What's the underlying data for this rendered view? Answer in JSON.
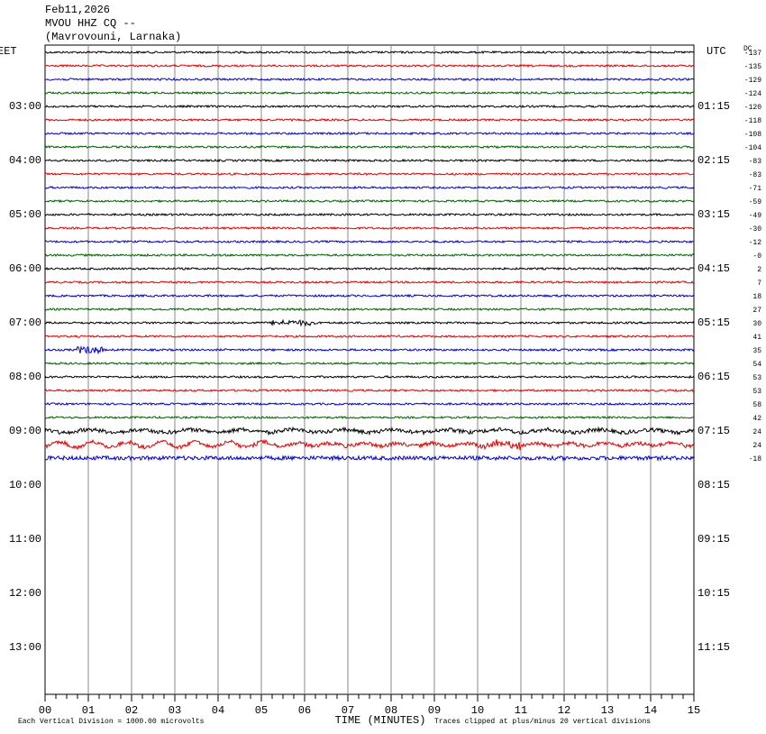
{
  "header": {
    "date": "Feb11,2026",
    "station": "MVOU HHZ CQ --",
    "location": "(Mavrovouni, Larnaka)"
  },
  "left_axis": {
    "title": "EET",
    "labels": [
      "03:00",
      "04:00",
      "05:00",
      "06:00",
      "07:00",
      "08:00",
      "09:00",
      "10:00",
      "11:00",
      "12:00",
      "13:00"
    ]
  },
  "right_axis": {
    "title": "UTC",
    "labels": [
      "01:15",
      "02:15",
      "03:15",
      "04:15",
      "05:15",
      "06:15",
      "07:15",
      "08:15",
      "09:15",
      "10:15",
      "11:15"
    ]
  },
  "dc_offsets": {
    "title": "DC",
    "values": [
      "-137",
      "-135",
      "-129",
      "-124",
      "-120",
      "-118",
      "-108",
      "-104",
      "-83",
      "-83",
      "-71",
      "-59",
      "-49",
      "-30",
      "-12",
      "-0",
      "2",
      "7",
      "18",
      "27",
      "30",
      "41",
      "35",
      "54",
      "53",
      "53",
      "58",
      "42",
      "24",
      "24",
      "-18"
    ]
  },
  "trace_colors": [
    "#000000",
    "#e00000",
    "#0000d0",
    "#006000"
  ],
  "x_axis": {
    "title": "TIME (MINUTES)",
    "labels": [
      "00",
      "01",
      "02",
      "03",
      "04",
      "05",
      "06",
      "07",
      "08",
      "09",
      "10",
      "11",
      "12",
      "13",
      "14",
      "15"
    ]
  },
  "footer": {
    "scale": "Each Vertical Division = 1000.00 microvolts",
    "clip": "Traces clipped at plus/minus 20 vertical divisions"
  }
}
